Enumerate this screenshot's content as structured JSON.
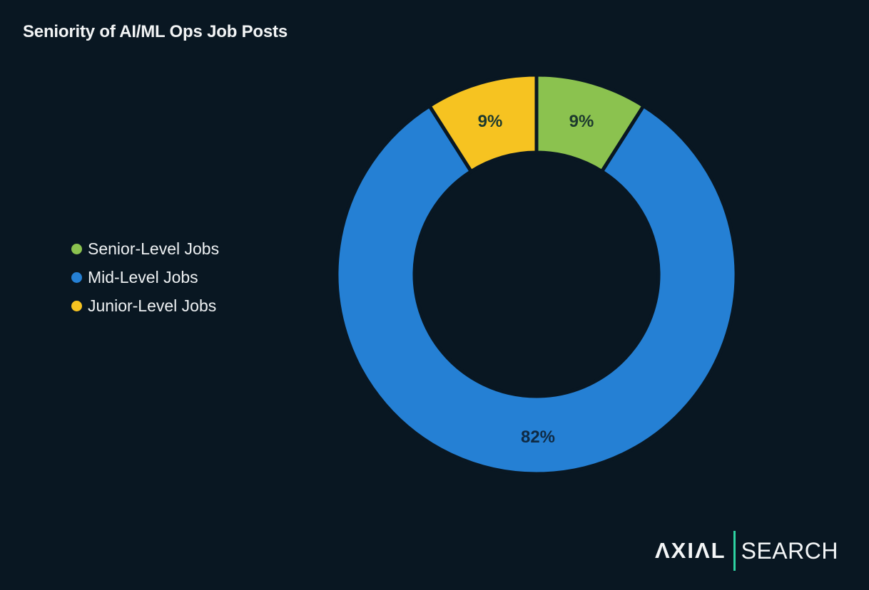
{
  "title": "Seniority of AI/ML Ops Job Posts",
  "legend": [
    {
      "label": "Senior-Level Jobs",
      "color": "#8bc24f"
    },
    {
      "label": "Mid-Level Jobs",
      "color": "#2580d4"
    },
    {
      "label": "Junior-Level Jobs",
      "color": "#f6c321"
    }
  ],
  "slice_labels": {
    "senior": "9%",
    "mid": "82%",
    "junior": "9%"
  },
  "logo": {
    "brand": "ΛXIΛL",
    "product": "SEARCH",
    "accent": "#2ed3a2"
  },
  "colors": {
    "background": "#091722",
    "senior": "#8bc24f",
    "mid": "#2580d4",
    "junior": "#f6c321"
  },
  "chart_data": {
    "type": "pie",
    "variant": "donut",
    "title": "Seniority of AI/ML Ops Job Posts",
    "categories": [
      "Senior-Level Jobs",
      "Mid-Level Jobs",
      "Junior-Level Jobs"
    ],
    "values": [
      9,
      82,
      9
    ],
    "labels": [
      "9%",
      "82%",
      "9%"
    ],
    "colors": [
      "#8bc24f",
      "#2580d4",
      "#f6c321"
    ],
    "legend_position": "left",
    "start_angle": "12 o'clock, clockwise"
  }
}
